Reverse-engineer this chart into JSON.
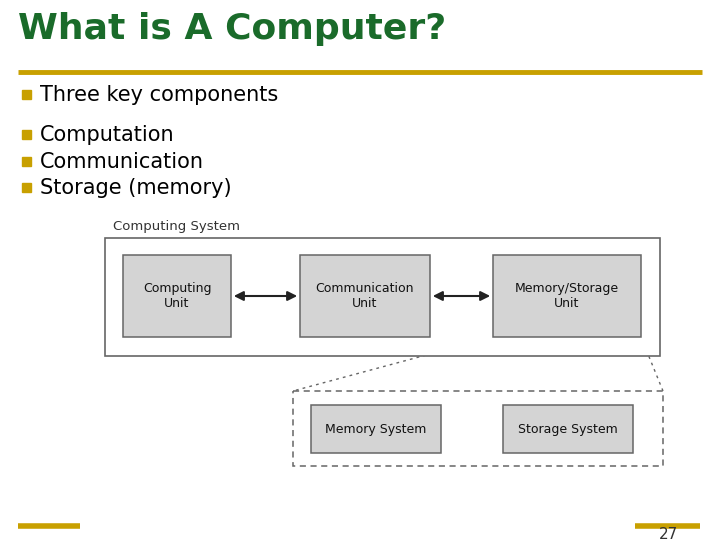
{
  "title": "What is A Computer?",
  "title_color": "#1a6b2a",
  "title_fontsize": 26,
  "separator_color": "#c8a000",
  "bullet_color": "#c8a000",
  "bullet_items_level1": [
    "Three key components"
  ],
  "bullet_items_level2": [
    "Computation",
    "Communication",
    "Storage (memory)"
  ],
  "body_text_fontsize": 15,
  "diagram_label": "Computing System",
  "box_fill": "#d4d4d4",
  "box_edge": "#666666",
  "outer_box_edge": "#666666",
  "page_number": "27",
  "footer_color": "#c8a000",
  "background_color": "#ffffff"
}
